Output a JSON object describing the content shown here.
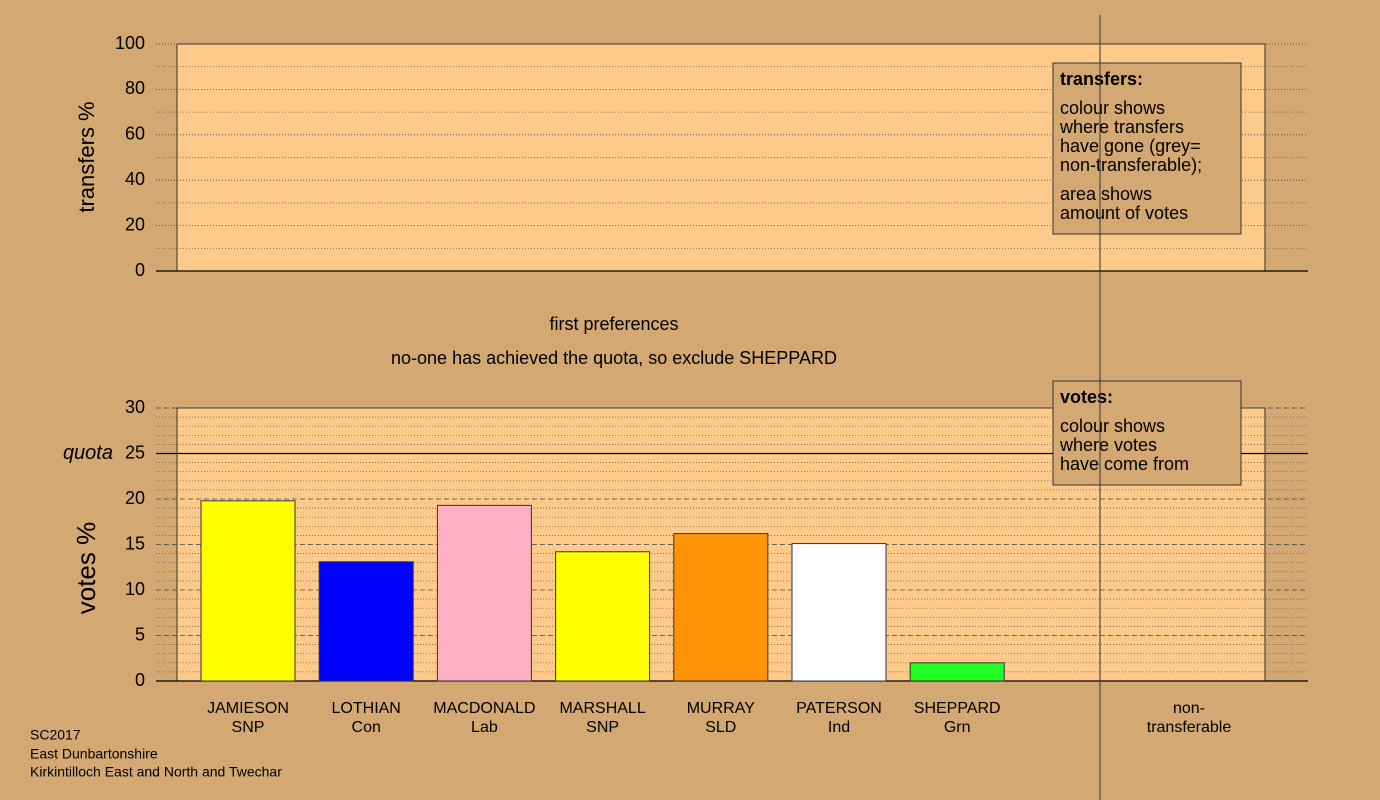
{
  "chart_data": [
    {
      "type": "bar",
      "ylabel": "transfers %",
      "ylim": [
        0,
        100
      ],
      "yticks": [
        0,
        20,
        40,
        60,
        80,
        100
      ],
      "minor_yticks": [
        10,
        30,
        50,
        70,
        90
      ],
      "grid": true,
      "legend": {
        "title": "transfers:",
        "lines": [
          "colour shows",
          "where transfers",
          "have gone (grey=",
          "non-transferable);"
        ],
        "lines2": [
          "area shows",
          "amount of votes"
        ]
      }
    },
    {
      "type": "bar",
      "ylabel": "votes %",
      "title": "first preferences",
      "subtitle": "no-one has achieved the quota, so exclude SHEPPARD",
      "ylim": [
        0,
        30
      ],
      "yticks": [
        0,
        5,
        10,
        15,
        20,
        25,
        30
      ],
      "minor_yticks": [
        1,
        2,
        3,
        4,
        6,
        7,
        8,
        9,
        11,
        12,
        13,
        14,
        16,
        17,
        18,
        19,
        21,
        22,
        23,
        24,
        26,
        27,
        28,
        29
      ],
      "grid": true,
      "quota": {
        "value": 25,
        "label": "quota"
      },
      "categories": [
        [
          "JAMIESON",
          "SNP"
        ],
        [
          "LOTHIAN",
          "Con"
        ],
        [
          "MACDONALD",
          "Lab"
        ],
        [
          "MARSHALL",
          "SNP"
        ],
        [
          "MURRAY",
          "SLD"
        ],
        [
          "PATERSON",
          "Ind"
        ],
        [
          "SHEPPARD",
          "Grn"
        ],
        [
          "non-",
          "transferable"
        ]
      ],
      "values": [
        19.8,
        13.1,
        19.3,
        14.2,
        16.2,
        15.1,
        2.0,
        null
      ],
      "colors": [
        "#ffff00",
        "#0000ff",
        "#ffb0c4",
        "#ffff00",
        "#ff9408",
        "#ffffff",
        "#22ff22",
        null
      ],
      "legend": {
        "title": "votes:",
        "lines": [
          "colour shows",
          "where votes",
          "have come from"
        ]
      }
    }
  ],
  "footer": [
    "SC2017",
    "East Dunbartonshire",
    "Kirkintilloch East and North and Twechar"
  ]
}
